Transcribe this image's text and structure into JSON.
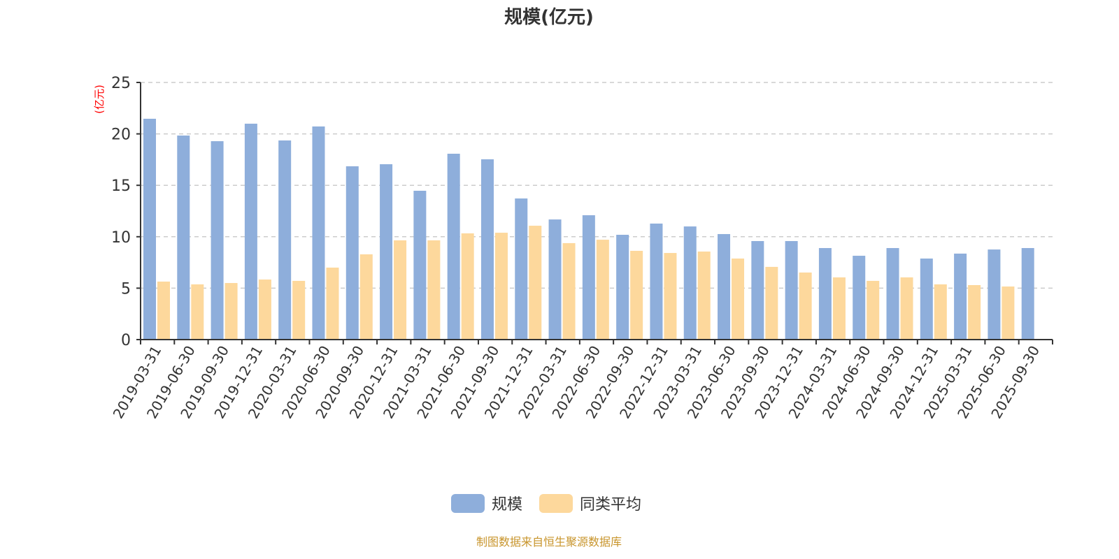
{
  "chart_data": {
    "type": "bar",
    "title": "规模(亿元)",
    "ylabel": "(亿元)",
    "xlabel": "",
    "ylim": [
      0,
      25
    ],
    "yticks": [
      0,
      5,
      10,
      15,
      20,
      25
    ],
    "grid": true,
    "legend_position": "bottom",
    "categories": [
      "2019-03-31",
      "2019-06-30",
      "2019-09-30",
      "2019-12-31",
      "2020-03-31",
      "2020-06-30",
      "2020-09-30",
      "2020-12-31",
      "2021-03-31",
      "2021-06-30",
      "2021-09-30",
      "2021-12-31",
      "2022-03-31",
      "2022-06-30",
      "2022-09-30",
      "2022-12-31",
      "2023-03-31",
      "2023-06-30",
      "2023-09-30",
      "2023-12-31",
      "2024-03-31",
      "2024-06-30",
      "2024-09-30",
      "2024-12-31",
      "2025-03-31",
      "2025-06-30",
      "2025-09-30"
    ],
    "series": [
      {
        "name": "规模",
        "color": "#8eaedb",
        "values": [
          21.47,
          19.84,
          19.29,
          20.99,
          19.36,
          20.72,
          16.85,
          17.05,
          14.47,
          18.07,
          17.53,
          13.72,
          11.68,
          12.09,
          10.19,
          11.28,
          11.0,
          10.26,
          9.58,
          9.58,
          8.9,
          8.15,
          8.9,
          7.88,
          8.36,
          8.76,
          8.9
        ]
      },
      {
        "name": "同类平均",
        "color": "#fdd89c",
        "values": [
          5.64,
          5.37,
          5.5,
          5.84,
          5.71,
          7.0,
          8.29,
          9.65,
          9.65,
          10.33,
          10.39,
          11.07,
          9.38,
          9.71,
          8.63,
          8.42,
          8.56,
          7.88,
          7.07,
          6.52,
          6.05,
          5.71,
          6.05,
          5.37,
          5.3,
          5.16,
          null
        ]
      }
    ],
    "source_note": "制图数据来自恒生聚源数据库"
  }
}
